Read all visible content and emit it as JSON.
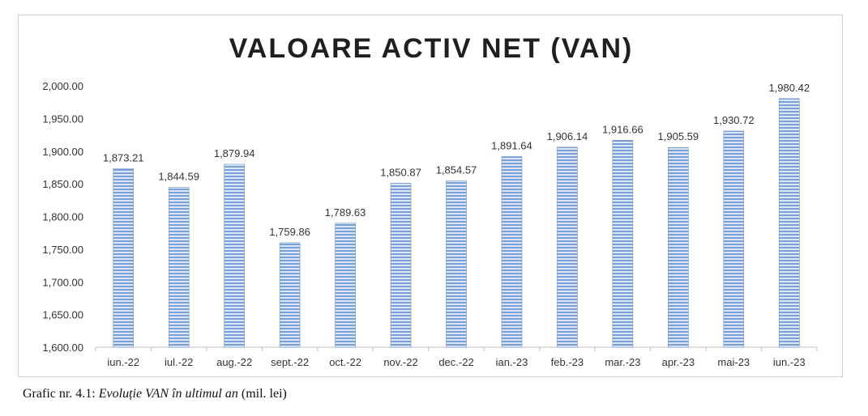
{
  "chart_data": {
    "type": "bar",
    "title": "VALOARE ACTIV NET (VAN)",
    "xlabel": "",
    "ylabel": "",
    "categories": [
      "iun.-22",
      "iul.-22",
      "aug.-22",
      "sept.-22",
      "oct.-22",
      "nov.-22",
      "dec.-22",
      "ian.-23",
      "feb.-23",
      "mar.-23",
      "apr.-23",
      "mai-23",
      "iun.-23"
    ],
    "values": [
      1873.21,
      1844.59,
      1879.94,
      1759.86,
      1789.63,
      1850.87,
      1854.57,
      1891.64,
      1906.14,
      1916.66,
      1905.59,
      1930.72,
      1980.42
    ],
    "value_labels": [
      "1,873.21",
      "1,844.59",
      "1,879.94",
      "1,759.86",
      "1,789.63",
      "1,850.87",
      "1,854.57",
      "1,891.64",
      "1,906.14",
      "1,916.66",
      "1,905.59",
      "1,930.72",
      "1,980.42"
    ],
    "ylim": [
      1600,
      2000
    ],
    "yticks": [
      1600,
      1650,
      1700,
      1750,
      1800,
      1850,
      1900,
      1950,
      2000
    ],
    "ytick_labels": [
      "1,600.00",
      "1,650.00",
      "1,700.00",
      "1,750.00",
      "1,800.00",
      "1,850.00",
      "1,900.00",
      "1,950.00",
      "2,000.00"
    ],
    "grid": false,
    "legend": "none",
    "bar_color": "#5b86c4"
  },
  "caption": {
    "prefix": "Grafic nr. 4.1: ",
    "italic": "Evoluție VAN în ultimul an",
    "suffix": " (mil. lei)"
  }
}
